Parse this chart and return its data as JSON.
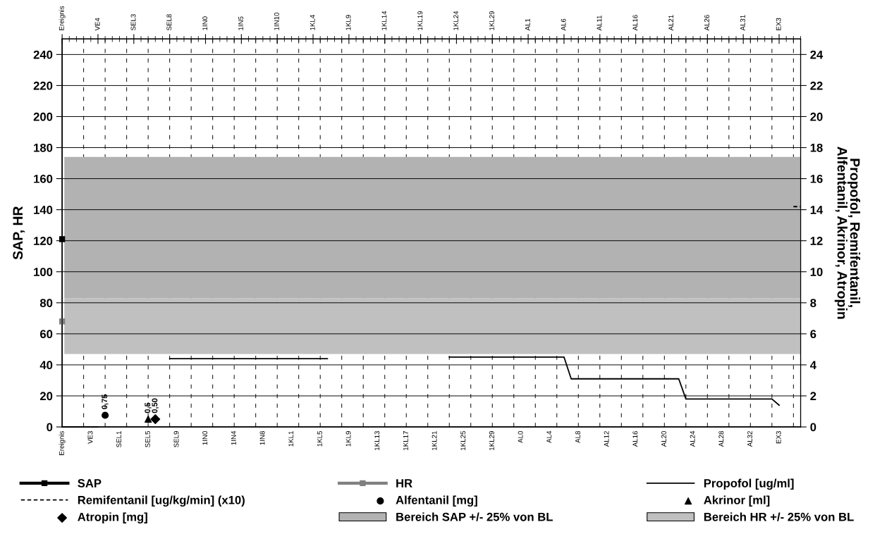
{
  "chart_data": {
    "type": "line",
    "ylabel": "SAP, HR",
    "y2label": "Propofol, Remifentanil,\nAlfentanil, Akrinor, Atropin",
    "categories": [
      "Ereignis",
      null,
      null,
      null,
      "VE3",
      "VE4",
      null,
      null,
      "SEL1",
      null,
      "SEL3",
      null,
      "SEL5",
      null,
      null,
      "SEL8",
      "SEL9",
      null,
      null,
      null,
      "1IN0",
      null,
      null,
      null,
      "1IN4",
      "1IN5",
      null,
      null,
      "1IN8",
      null,
      "1IN10",
      null,
      "1KL1",
      null,
      null,
      "1KL4",
      "1KL5",
      null,
      null,
      null,
      "1KL9",
      null,
      null,
      null,
      "1KL13",
      "1KL14",
      null,
      null,
      "1KL17",
      null,
      "1KL19",
      null,
      "1KL21",
      null,
      null,
      "1KL24",
      "1KL25",
      null,
      null,
      null,
      "1KL29",
      null,
      null,
      null,
      "AL0",
      "AL1",
      null,
      null,
      "AL4",
      null,
      "AL6",
      null,
      "AL8",
      null,
      null,
      "AL11",
      "AL12",
      null,
      null,
      null,
      "AL16",
      null,
      null,
      null,
      "AL20",
      "AL21",
      null,
      null,
      "AL24",
      null,
      "AL26",
      null,
      "AL28",
      null,
      null,
      "AL31",
      "AL32",
      null,
      null,
      null,
      "EX3",
      null,
      null,
      null
    ],
    "series": [
      {
        "name": "SAP",
        "color": "#000000",
        "marker": "square",
        "values": [
          121,
          null,
          null,
          null,
          null,
          null,
          null,
          null,
          null,
          null,
          null,
          null,
          null,
          null,
          null,
          null,
          null,
          null,
          null,
          null,
          null,
          null,
          null,
          null,
          null,
          null,
          null,
          null,
          null,
          null,
          null,
          null,
          null,
          null,
          null,
          null,
          null,
          null,
          null,
          null,
          null,
          null,
          null,
          null,
          null,
          null,
          null,
          null,
          null,
          null,
          null,
          null,
          null,
          null,
          null,
          null,
          null,
          null,
          null,
          null,
          null,
          null,
          null,
          null,
          null,
          null,
          null,
          null,
          null,
          null,
          null,
          null,
          null,
          null,
          null,
          null,
          null,
          null,
          null,
          null,
          null,
          null,
          null,
          null,
          null,
          null,
          null,
          null,
          null,
          null,
          null,
          null,
          null,
          null,
          null,
          null,
          null,
          null,
          null,
          null,
          null,
          null,
          null,
          null
        ]
      },
      {
        "name": "HR",
        "color": "#808080",
        "marker": "square",
        "values": [
          68,
          null,
          null,
          null,
          null,
          null,
          null,
          null,
          null,
          null,
          null,
          null,
          null,
          null,
          null,
          null,
          null,
          null,
          null,
          null,
          null,
          null,
          null,
          null,
          null,
          null,
          null,
          null,
          null,
          null,
          null,
          null,
          null,
          null,
          null,
          null,
          null,
          null,
          null,
          null,
          null,
          null,
          null,
          null,
          null,
          null,
          null,
          null,
          null,
          null,
          null,
          null,
          null,
          null,
          null,
          null,
          null,
          null,
          null,
          null,
          null,
          null,
          null,
          null,
          null,
          null,
          null,
          null,
          null,
          null,
          null,
          null,
          null,
          null,
          null,
          null,
          null,
          null,
          null,
          null,
          null,
          null,
          null,
          null,
          null,
          null,
          null,
          null,
          null,
          null,
          null,
          null,
          null,
          null,
          null,
          null,
          null,
          null,
          null,
          null,
          null,
          null,
          null,
          null
        ]
      },
      {
        "name": "Propofol [ug/ml]",
        "color": "#000000",
        "axis": "y2",
        "values": [
          0,
          0,
          0,
          0,
          0,
          0,
          null,
          null,
          null,
          null,
          null,
          null,
          null,
          null,
          null,
          4.4,
          4.4,
          4.4,
          4.4,
          4.4,
          4.4,
          4.4,
          4.4,
          4.4,
          4.4,
          4.4,
          4.4,
          4.4,
          4.4,
          4.4,
          4.4,
          4.4,
          4.4,
          4.4,
          4.4,
          4.4,
          4.4,
          4.4,
          null,
          null,
          null,
          null,
          null,
          null,
          null,
          null,
          null,
          null,
          null,
          null,
          null,
          null,
          null,
          null,
          4.5,
          4.5,
          4.5,
          4.5,
          4.5,
          4.5,
          4.5,
          4.5,
          4.5,
          4.5,
          4.5,
          4.5,
          4.5,
          4.5,
          4.5,
          4.5,
          4.5,
          3.1,
          3.1,
          3.1,
          3.1,
          3.1,
          3.1,
          3.1,
          3.1,
          3.1,
          3.1,
          3.1,
          3.1,
          3.1,
          3.1,
          3.1,
          3.1,
          1.8,
          1.8,
          1.8,
          1.8,
          1.8,
          1.8,
          1.8,
          1.8,
          1.8,
          1.8,
          1.8,
          1.8,
          1.8,
          1.4,
          null,
          null,
          null
        ]
      },
      {
        "name": "Remifentanil [ug/kg/min] (x10)",
        "color": "#000000",
        "axis": "y2",
        "line_style": "dashed",
        "values": [
          null,
          null,
          null,
          null,
          null,
          null,
          null,
          null,
          null,
          null,
          null,
          null,
          null,
          null,
          null,
          null,
          null,
          null,
          null,
          null,
          null,
          null,
          null,
          null,
          null,
          null,
          null,
          null,
          null,
          null,
          null,
          null,
          null,
          null,
          null,
          null,
          null,
          null,
          null,
          null,
          null,
          null,
          null,
          null,
          null,
          null,
          null,
          null,
          null,
          null,
          null,
          null,
          null,
          null,
          null,
          null,
          null,
          null,
          null,
          null,
          null,
          null,
          null,
          null,
          null,
          null,
          null,
          null,
          null,
          null,
          null,
          null,
          null,
          null,
          null,
          null,
          null,
          null,
          null,
          null,
          null,
          null,
          null,
          null,
          null,
          null,
          null,
          null,
          null,
          null,
          null,
          null,
          null,
          null,
          null,
          null,
          null,
          null,
          null,
          null,
          null,
          null,
          14.2,
          14.2
        ]
      },
      {
        "name": "Alfentanil [mg]",
        "type": "scatter",
        "marker": "circle",
        "color": "#000000",
        "axis": "y2",
        "values": [
          null,
          null,
          null,
          null,
          null,
          null,
          0.75,
          null,
          null,
          null,
          null,
          null,
          null,
          null,
          null,
          null,
          null,
          null,
          null,
          null,
          null,
          null,
          null,
          null,
          null,
          null,
          null,
          null,
          null,
          null,
          null,
          null,
          null,
          null,
          null,
          null,
          null,
          null,
          null,
          null,
          null,
          null,
          null,
          null,
          null,
          null,
          null,
          null,
          null,
          null,
          null,
          null,
          null,
          null,
          null,
          null,
          null,
          null,
          null,
          null,
          null,
          null,
          null,
          null,
          null,
          null,
          null,
          null,
          null,
          null,
          null,
          null,
          null,
          null,
          null,
          null,
          null,
          null,
          null,
          null,
          null,
          null,
          null,
          null,
          null,
          null,
          null,
          null,
          null,
          null,
          null,
          null,
          null,
          null,
          null,
          null,
          null,
          null,
          null,
          null,
          null,
          null,
          null,
          null
        ],
        "value_labels": [
          null,
          null,
          null,
          null,
          null,
          null,
          "0,75",
          null,
          null,
          null,
          null,
          null,
          null,
          null,
          null,
          null,
          null,
          null,
          null,
          null,
          null,
          null,
          null,
          null,
          null,
          null,
          null,
          null,
          null,
          null,
          null,
          null,
          null,
          null,
          null,
          null,
          null,
          null,
          null,
          null,
          null,
          null,
          null,
          null,
          null,
          null,
          null,
          null,
          null,
          null,
          null,
          null,
          null,
          null,
          null,
          null,
          null,
          null,
          null,
          null,
          null,
          null,
          null,
          null,
          null,
          null,
          null,
          null,
          null,
          null,
          null,
          null,
          null,
          null,
          null,
          null,
          null,
          null,
          null,
          null,
          null,
          null,
          null,
          null,
          null,
          null,
          null,
          null,
          null,
          null,
          null,
          null,
          null,
          null,
          null,
          null,
          null,
          null,
          null,
          null,
          null,
          null,
          null,
          null
        ]
      },
      {
        "name": "Akrinor [ml]",
        "type": "scatter",
        "marker": "triangle",
        "color": "#000000",
        "axis": "y2",
        "values": [
          null,
          null,
          null,
          null,
          null,
          null,
          null,
          null,
          null,
          null,
          null,
          null,
          0.5,
          null,
          null,
          null,
          null,
          null,
          null,
          null,
          null,
          null,
          null,
          null,
          null,
          null,
          null,
          null,
          null,
          null,
          null,
          null,
          null,
          null,
          null,
          null,
          null,
          null,
          null,
          null,
          null,
          null,
          null,
          null,
          null,
          null,
          null,
          null,
          null,
          null,
          null,
          null,
          null,
          null,
          null,
          null,
          null,
          null,
          null,
          null,
          null,
          null,
          null,
          null,
          null,
          null,
          null,
          null,
          null,
          null,
          null,
          null,
          null,
          null,
          null,
          null,
          null,
          null,
          null,
          null,
          null,
          null,
          null,
          null,
          null,
          null,
          null,
          null,
          null,
          null,
          null,
          null,
          null,
          null,
          null,
          null,
          null,
          null,
          null,
          null,
          null,
          null,
          null,
          null
        ],
        "value_labels": [
          null,
          null,
          null,
          null,
          null,
          null,
          null,
          null,
          null,
          null,
          null,
          null,
          "0,5",
          null,
          null,
          null,
          null,
          null,
          null,
          null,
          null,
          null,
          null,
          null,
          null,
          null,
          null,
          null,
          null,
          null,
          null,
          null,
          null,
          null,
          null,
          null,
          null,
          null,
          null,
          null,
          null,
          null,
          null,
          null,
          null,
          null,
          null,
          null,
          null,
          null,
          null,
          null,
          null,
          null,
          null,
          null,
          null,
          null,
          null,
          null,
          null,
          null,
          null,
          null,
          null,
          null,
          null,
          null,
          null,
          null,
          null,
          null,
          null,
          null,
          null,
          null,
          null,
          null,
          null,
          null,
          null,
          null,
          null,
          null,
          null,
          null,
          null,
          null,
          null,
          null,
          null,
          null,
          null,
          null,
          null,
          null,
          null,
          null,
          null,
          null,
          null,
          null,
          null,
          null
        ]
      },
      {
        "name": "Atropin [mg]",
        "type": "scatter",
        "marker": "diamond",
        "color": "#000000",
        "axis": "y2",
        "values": [
          null,
          null,
          null,
          null,
          null,
          null,
          null,
          null,
          null,
          null,
          null,
          null,
          null,
          0.5,
          null,
          null,
          null,
          null,
          null,
          null,
          null,
          null,
          null,
          null,
          null,
          null,
          null,
          null,
          null,
          null,
          null,
          null,
          null,
          null,
          null,
          null,
          null,
          null,
          null,
          null,
          null,
          null,
          null,
          null,
          null,
          null,
          null,
          null,
          null,
          null,
          null,
          null,
          null,
          null,
          null,
          null,
          null,
          null,
          null,
          null,
          null,
          null,
          null,
          null,
          null,
          null,
          null,
          null,
          null,
          null,
          null,
          null,
          null,
          null,
          null,
          null,
          null,
          null,
          null,
          null,
          null,
          null,
          null,
          null,
          null,
          null,
          null,
          null,
          null,
          null,
          null,
          null,
          null,
          null,
          null,
          null,
          null,
          null,
          null,
          null,
          null,
          null,
          null,
          null
        ],
        "value_labels": [
          null,
          null,
          null,
          null,
          null,
          null,
          null,
          null,
          null,
          null,
          null,
          null,
          null,
          "0,50",
          null,
          null,
          null,
          null,
          null,
          null,
          null,
          null,
          null,
          null,
          null,
          null,
          null,
          null,
          null,
          null,
          null,
          null,
          null,
          null,
          null,
          null,
          null,
          null,
          null,
          null,
          null,
          null,
          null,
          null,
          null,
          null,
          null,
          null,
          null,
          null,
          null,
          null,
          null,
          null,
          null,
          null,
          null,
          null,
          null,
          null,
          null,
          null,
          null,
          null,
          null,
          null,
          null,
          null,
          null,
          null,
          null,
          null,
          null,
          null,
          null,
          null,
          null,
          null,
          null,
          null,
          null,
          null,
          null,
          null,
          null,
          null,
          null,
          null,
          null,
          null,
          null,
          null,
          null,
          null,
          null,
          null,
          null,
          null,
          null,
          null,
          null,
          null,
          null,
          null
        ]
      }
    ],
    "bands": [
      {
        "axis": "y",
        "from": 83,
        "to": 174,
        "label": "Bereich SAP +/- 25% von BL",
        "color": "#b2b2b2"
      },
      {
        "axis": "y",
        "from": 47,
        "to": 83,
        "label": "Bereich HR +/- 25% von BL",
        "color": "#c0c0c0"
      }
    ],
    "ylim": [
      0,
      250
    ],
    "yticks": [
      0,
      20,
      40,
      60,
      80,
      100,
      120,
      140,
      160,
      180,
      200,
      220,
      240
    ],
    "y2lim": [
      0,
      25
    ],
    "y2ticks": [
      0,
      2,
      4,
      6,
      8,
      10,
      12,
      14,
      16,
      18,
      20,
      22,
      24
    ],
    "grid": true,
    "legend": "bottom"
  }
}
